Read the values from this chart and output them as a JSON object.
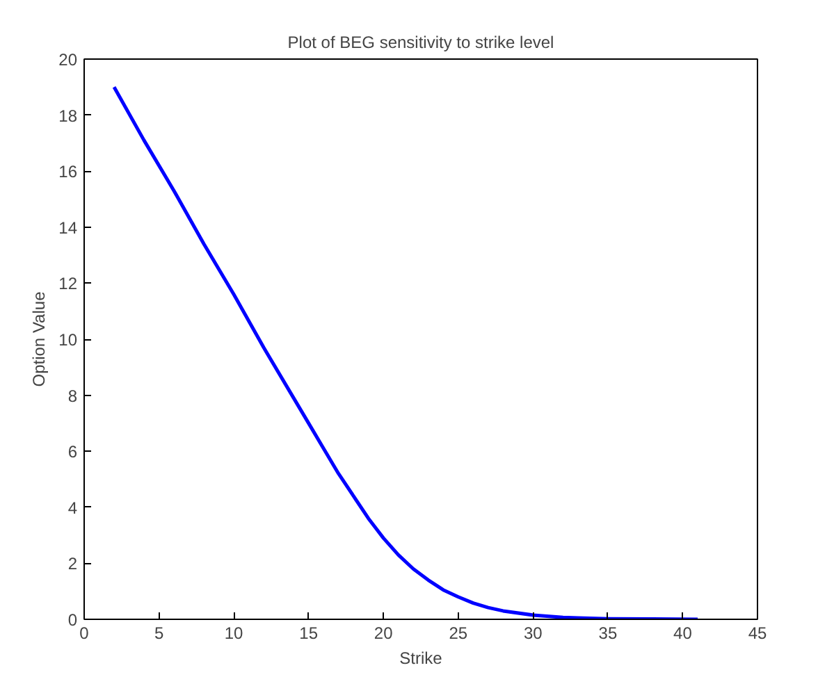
{
  "chart_data": {
    "type": "line",
    "title": "Plot of BEG sensitivity to strike level",
    "xlabel": "Strike",
    "ylabel": "Option Value",
    "x": [
      2,
      4,
      6,
      8,
      10,
      12,
      14,
      15,
      16,
      17,
      18,
      19,
      20,
      21,
      22,
      23,
      24,
      25,
      26,
      27,
      28,
      30,
      32,
      33,
      35,
      38,
      41
    ],
    "series": [
      {
        "color": "#0000ff",
        "values": [
          19.0,
          17.1,
          15.3,
          13.4,
          11.6,
          9.7,
          7.9,
          7.0,
          6.1,
          5.2,
          4.4,
          3.6,
          2.9,
          2.3,
          1.8,
          1.4,
          1.05,
          0.8,
          0.58,
          0.42,
          0.3,
          0.15,
          0.07,
          0.05,
          0.02,
          0.01,
          0.0
        ]
      }
    ],
    "xlim": [
      0,
      45
    ],
    "ylim": [
      0,
      20
    ],
    "xticks": [
      0,
      5,
      10,
      15,
      20,
      25,
      30,
      35,
      40,
      45
    ],
    "yticks": [
      0,
      2,
      4,
      6,
      8,
      10,
      12,
      14,
      16,
      18,
      20
    ],
    "grid": false,
    "marker": "none",
    "line_style": "solid"
  }
}
